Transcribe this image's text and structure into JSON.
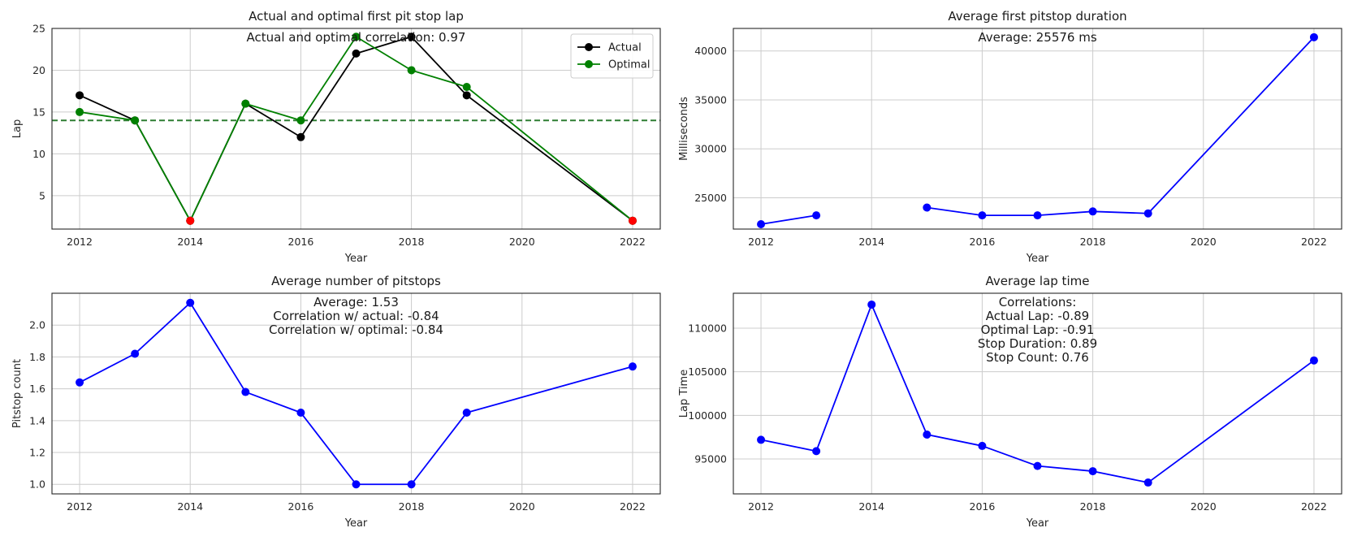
{
  "chart_data": [
    {
      "type": "line",
      "title": "Actual and optimal first pit stop lap",
      "xlabel": "Year",
      "ylabel": "Lap",
      "xlim": [
        2011.5,
        2022.5
      ],
      "ylim": [
        1,
        25
      ],
      "xticks": [
        "2012",
        "2014",
        "2016",
        "2018",
        "2020",
        "2022"
      ],
      "yticks": [
        "5",
        "10",
        "15",
        "20",
        "25"
      ],
      "grid": true,
      "legend_position": "top-right",
      "annotations": [
        "Actual and optimal correlation: 0.97"
      ],
      "reference_line": {
        "y": 14,
        "color": "#2e7d32",
        "style": "dashed"
      },
      "highlight_points": {
        "x": [
          2014,
          2022
        ],
        "y": [
          2,
          2
        ],
        "color": "#ff0000"
      },
      "series": [
        {
          "name": "Actual",
          "color": "#000000",
          "x": [
            2012,
            2013,
            2014,
            2015,
            2016,
            2017,
            2018,
            2019,
            2022
          ],
          "values": [
            17,
            14,
            2,
            16,
            12,
            22,
            24,
            17,
            2
          ]
        },
        {
          "name": "Optimal",
          "color": "#008000",
          "x": [
            2012,
            2013,
            2014,
            2015,
            2016,
            2017,
            2018,
            2019,
            2022
          ],
          "values": [
            15,
            14,
            2,
            16,
            14,
            24,
            20,
            18,
            2
          ]
        }
      ]
    },
    {
      "type": "line",
      "title": "Average first pitstop duration",
      "xlabel": "Year",
      "ylabel": "Milliseconds",
      "xlim": [
        2011.5,
        2022.5
      ],
      "ylim": [
        21800,
        42300
      ],
      "xticks": [
        "2012",
        "2014",
        "2016",
        "2018",
        "2020",
        "2022"
      ],
      "yticks": [
        "25000",
        "30000",
        "35000",
        "40000"
      ],
      "grid": true,
      "annotations": [
        "Average: 25576 ms"
      ],
      "series": [
        {
          "color": "#0000ff",
          "x": [
            2012,
            2013
          ],
          "values": [
            22300,
            23200
          ]
        },
        {
          "color": "#0000ff",
          "x": [
            2015,
            2016,
            2017,
            2018,
            2019,
            2022
          ],
          "values": [
            24000,
            23200,
            23200,
            23600,
            23400,
            41400
          ]
        }
      ]
    },
    {
      "type": "line",
      "title": "Average number of pitstops",
      "xlabel": "Year",
      "ylabel": "Pitstop count",
      "xlim": [
        2011.5,
        2022.5
      ],
      "ylim": [
        0.94,
        2.2
      ],
      "xticks": [
        "2012",
        "2014",
        "2016",
        "2018",
        "2020",
        "2022"
      ],
      "yticks": [
        "1.0",
        "1.2",
        "1.4",
        "1.6",
        "1.8",
        "2.0"
      ],
      "grid": true,
      "annotations": [
        "Average: 1.53",
        "Correlation w/ actual: -0.84",
        "Correlation w/ optimal: -0.84"
      ],
      "series": [
        {
          "color": "#0000ff",
          "x": [
            2012,
            2013,
            2014,
            2015,
            2016,
            2017,
            2018,
            2019,
            2022
          ],
          "values": [
            1.64,
            1.82,
            2.14,
            1.58,
            1.45,
            1.0,
            1.0,
            1.45,
            1.74
          ]
        }
      ]
    },
    {
      "type": "line",
      "title": "Average lap time",
      "xlabel": "Year",
      "ylabel": "Lap Time",
      "xlim": [
        2011.5,
        2022.5
      ],
      "ylim": [
        91000,
        114000
      ],
      "xticks": [
        "2012",
        "2014",
        "2016",
        "2018",
        "2020",
        "2022"
      ],
      "yticks": [
        "95000",
        "100000",
        "105000",
        "110000"
      ],
      "grid": true,
      "annotations": [
        "Correlations:",
        "Actual Lap: -0.89",
        "Optimal Lap: -0.91",
        "Stop Duration: 0.89",
        "Stop Count: 0.76"
      ],
      "series": [
        {
          "color": "#0000ff",
          "x": [
            2012,
            2013,
            2014,
            2015,
            2016,
            2017,
            2018,
            2019,
            2022
          ],
          "values": [
            97200,
            95900,
            112700,
            97800,
            96500,
            94200,
            93600,
            92300,
            106300
          ]
        }
      ]
    }
  ]
}
